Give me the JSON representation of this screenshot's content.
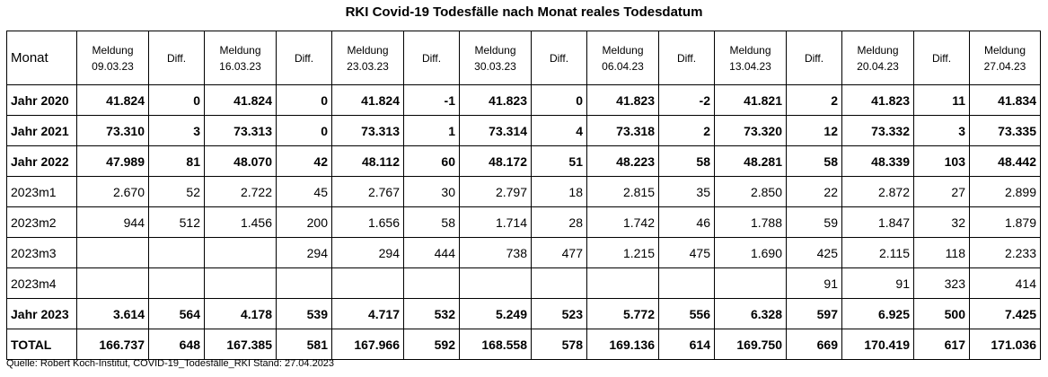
{
  "title": "RKI Covid-19 Todesfälle nach Monat reales Todesdatum",
  "table": {
    "header": [
      "Monat",
      "Meldung\n09.03.23",
      "Diff.",
      "Meldung\n16.03.23",
      "Diff.",
      "Meldung\n23.03.23",
      "Diff.",
      "Meldung\n30.03.23",
      "Diff.",
      "Meldung\n06.04.23",
      "Diff.",
      "Meldung\n13.04.23",
      "Diff.",
      "Meldung\n20.04.23",
      "Diff.",
      "Meldung\n27.04.23"
    ],
    "rows": [
      {
        "bold": true,
        "cells": [
          "Jahr 2020",
          "41.824",
          "0",
          "41.824",
          "0",
          "41.824",
          "-1",
          "41.823",
          "0",
          "41.823",
          "-2",
          "41.821",
          "2",
          "41.823",
          "11",
          "41.834"
        ]
      },
      {
        "bold": true,
        "cells": [
          "Jahr 2021",
          "73.310",
          "3",
          "73.313",
          "0",
          "73.313",
          "1",
          "73.314",
          "4",
          "73.318",
          "2",
          "73.320",
          "12",
          "73.332",
          "3",
          "73.335"
        ]
      },
      {
        "bold": true,
        "cells": [
          "Jahr 2022",
          "47.989",
          "81",
          "48.070",
          "42",
          "48.112",
          "60",
          "48.172",
          "51",
          "48.223",
          "58",
          "48.281",
          "58",
          "48.339",
          "103",
          "48.442"
        ]
      },
      {
        "bold": false,
        "cells": [
          "2023m1",
          "2.670",
          "52",
          "2.722",
          "45",
          "2.767",
          "30",
          "2.797",
          "18",
          "2.815",
          "35",
          "2.850",
          "22",
          "2.872",
          "27",
          "2.899"
        ]
      },
      {
        "bold": false,
        "cells": [
          "2023m2",
          "944",
          "512",
          "1.456",
          "200",
          "1.656",
          "58",
          "1.714",
          "28",
          "1.742",
          "46",
          "1.788",
          "59",
          "1.847",
          "32",
          "1.879"
        ]
      },
      {
        "bold": false,
        "cells": [
          "2023m3",
          "",
          "",
          "",
          "294",
          "294",
          "444",
          "738",
          "477",
          "1.215",
          "475",
          "1.690",
          "425",
          "2.115",
          "118",
          "2.233"
        ]
      },
      {
        "bold": false,
        "cells": [
          "2023m4",
          "",
          "",
          "",
          "",
          "",
          "",
          "",
          "",
          "",
          "",
          "",
          "91",
          "91",
          "323",
          "414"
        ]
      },
      {
        "bold": true,
        "cells": [
          "Jahr 2023",
          "3.614",
          "564",
          "4.178",
          "539",
          "4.717",
          "532",
          "5.249",
          "523",
          "5.772",
          "556",
          "6.328",
          "597",
          "6.925",
          "500",
          "7.425"
        ]
      },
      {
        "bold": true,
        "cells": [
          "TOTAL",
          "166.737",
          "648",
          "167.385",
          "581",
          "167.966",
          "592",
          "168.558",
          "578",
          "169.136",
          "614",
          "169.750",
          "669",
          "170.419",
          "617",
          "171.036"
        ]
      }
    ]
  },
  "source": "Quelle: Robert Koch-Institut, COVID-19_Todesfälle_RKI Stand: 27.04.2023"
}
